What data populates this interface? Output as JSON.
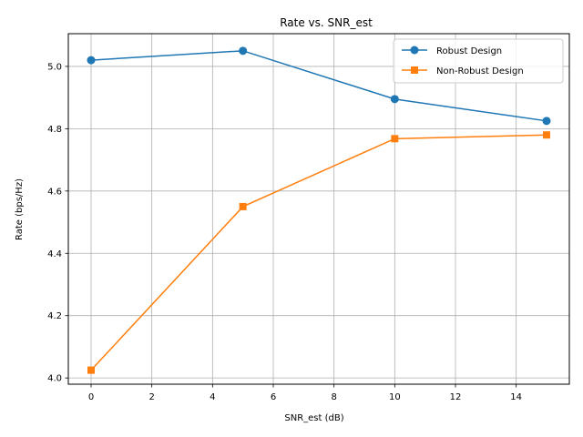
{
  "chart_data": {
    "type": "line",
    "title": "Rate vs. SNR_est",
    "xlabel": "SNR_est (dB)",
    "ylabel": "Rate (bps/Hz)",
    "x": [
      0,
      5,
      10,
      15
    ],
    "xlim": [
      -0.75,
      15.75
    ],
    "ylim": [
      3.98,
      5.105
    ],
    "xticks": [
      0,
      2,
      4,
      6,
      8,
      10,
      12,
      14
    ],
    "yticks": [
      4.0,
      4.2,
      4.4,
      4.6,
      4.8,
      5.0
    ],
    "grid": true,
    "legend_position": "top-right",
    "series": [
      {
        "name": "Robust Design",
        "values": [
          5.02,
          5.05,
          4.895,
          4.825
        ],
        "color": "#1f77b4",
        "marker": "circle"
      },
      {
        "name": "Non-Robust Design",
        "values": [
          4.025,
          4.55,
          4.768,
          4.78
        ],
        "color": "#ff7f0e",
        "marker": "square"
      }
    ]
  }
}
